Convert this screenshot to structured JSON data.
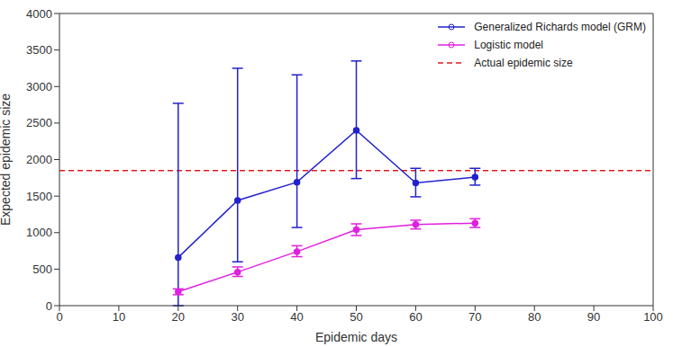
{
  "chart_data": {
    "type": "line",
    "x_label": "Epidemic days",
    "y_label": "Expected epidemic size",
    "x": [
      20,
      30,
      40,
      50,
      60,
      70
    ],
    "series": [
      {
        "name": "Generalized Richards model (GRM)",
        "color": "#2222cc",
        "marker": "circle",
        "values": [
          660,
          1440,
          1690,
          2400,
          1680,
          1760
        ],
        "lower": [
          0,
          600,
          1070,
          1740,
          1490,
          1650
        ],
        "upper": [
          2770,
          3250,
          3160,
          3350,
          1880,
          1880
        ]
      },
      {
        "name": "Logistic model",
        "color": "#e020e0",
        "marker": "circle",
        "values": [
          190,
          460,
          740,
          1040,
          1110,
          1130
        ],
        "lower": [
          150,
          400,
          670,
          960,
          1050,
          1070
        ],
        "upper": [
          230,
          530,
          820,
          1120,
          1170,
          1190
        ]
      }
    ],
    "reference_line": {
      "name": "Actual epidemic size",
      "value": 1850,
      "color": "#e41a1c",
      "line_style": "dashed"
    },
    "xlim": [
      0,
      100
    ],
    "xticks": [
      0,
      10,
      20,
      30,
      40,
      50,
      60,
      70,
      80,
      90,
      100
    ],
    "ylim": [
      0,
      4000
    ],
    "yticks": [
      0,
      500,
      1000,
      1500,
      2000,
      2500,
      3000,
      3500,
      4000
    ],
    "grid": false,
    "legend": "top-right"
  }
}
